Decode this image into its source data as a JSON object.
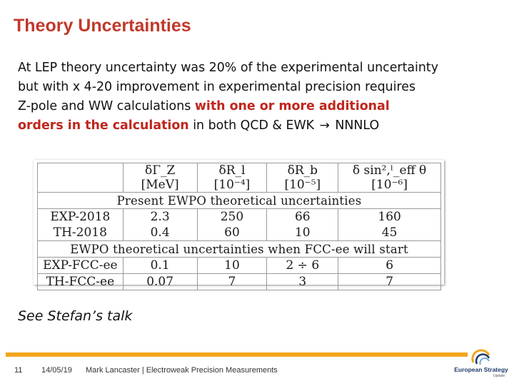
{
  "slide": {
    "title": "Theory Uncertainties",
    "body_lines": [
      "At LEP theory uncertainty was 20% of the experimental uncertainty",
      "but with x 4-20 improvement in experimental precision requires"
    ],
    "line3_prefix": "Z-pole and WW calculations ",
    "line3_emph": "with one or more additional",
    "line4_emph": "orders in the calculation",
    "line4_suffix_a": " in both QCD & EWK ",
    "arrow": "→",
    "line4_suffix_b": " NNNLO",
    "footnote": "See Stefan’s talk"
  },
  "table": {
    "headers": [
      "",
      "δΓ_Z [MeV]",
      "δR_l [10⁻⁴]",
      "δR_b [10⁻⁵]",
      "δ sin²,ˡ_eff θ [10⁻⁶]"
    ],
    "section1": "Present EWPO theoretical uncertainties",
    "section2": "EWPO theoretical uncertainties when FCC-ee will start",
    "rows1": [
      [
        "EXP-2018",
        "2.3",
        "250",
        "66",
        "160"
      ],
      [
        "TH-2018",
        "0.4",
        "60",
        "10",
        "45"
      ]
    ],
    "rows2": [
      [
        "EXP-FCC-ee",
        "0.1",
        "10",
        "2 ÷ 6",
        "6"
      ],
      [
        "TH-FCC-ee",
        "0.07",
        "7",
        "3",
        "7"
      ]
    ]
  },
  "footer": {
    "page": "11",
    "date": "14/05/19",
    "author": "Mark Lancaster | Electroweak Precision Measurements",
    "logo_text": "European Strategy",
    "logo_sub": "Update",
    "accent_color": "#f3a51e",
    "title_color": "#c0392b"
  }
}
